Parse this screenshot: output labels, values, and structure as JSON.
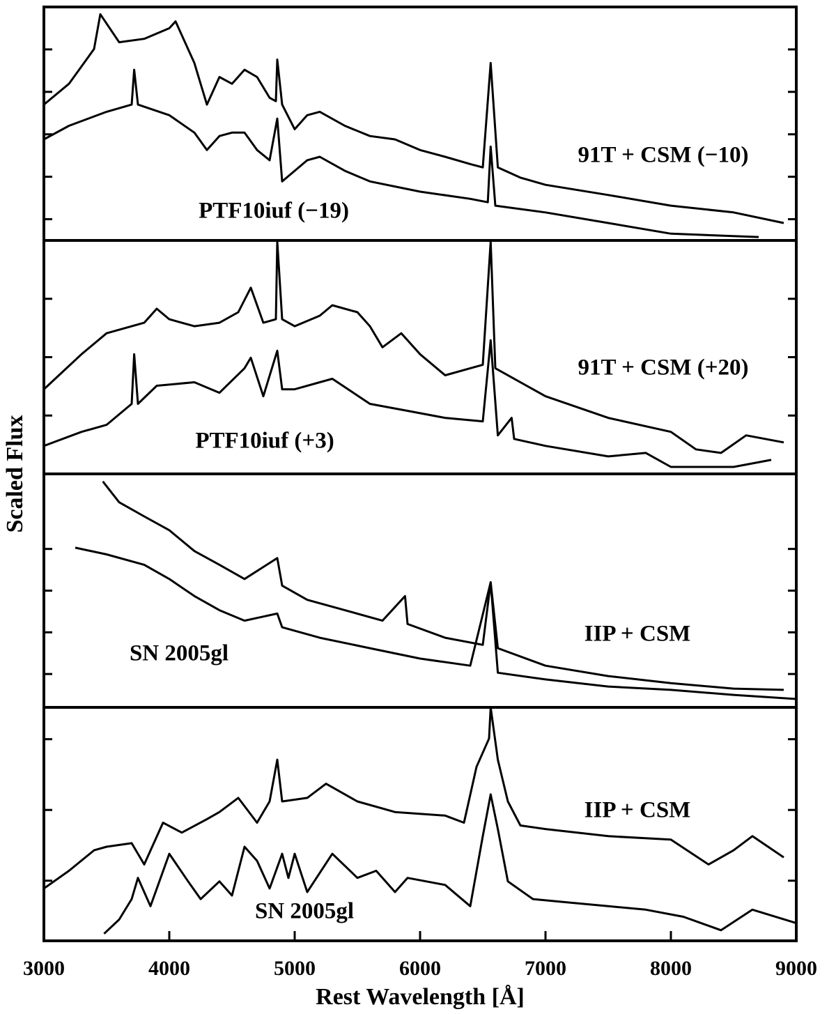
{
  "ylabel": "Scaled Flux",
  "chart_data": [
    {
      "type": "line",
      "xlim": [
        3000,
        9000
      ],
      "ylim": [
        0,
        5.5
      ],
      "yticks": [
        0.5,
        1.5,
        2.5,
        3.5,
        4.5
      ],
      "series": [
        {
          "name": "91T + CSM (−10)",
          "color": "#000000",
          "x": [
            3000,
            3200,
            3400,
            3450,
            3600,
            3800,
            4000,
            4050,
            4200,
            4300,
            4400,
            4500,
            4600,
            4700,
            4800,
            4850,
            4861,
            4900,
            5000,
            5100,
            5200,
            5400,
            5600,
            5800,
            6000,
            6200,
            6400,
            6500,
            6563,
            6620,
            6800,
            7000,
            7500,
            8000,
            8500,
            8900
          ],
          "values": [
            3.2,
            3.69,
            4.51,
            5.33,
            4.67,
            4.75,
            5.0,
            5.16,
            4.18,
            3.2,
            3.85,
            3.69,
            4.02,
            3.85,
            3.36,
            3.28,
            4.26,
            3.2,
            2.62,
            2.95,
            3.03,
            2.7,
            2.46,
            2.38,
            2.13,
            1.97,
            1.8,
            1.72,
            4.18,
            1.72,
            1.48,
            1.31,
            1.07,
            0.82,
            0.66,
            0.41
          ]
        },
        {
          "name": "PTF10iuf (−19)",
          "color": "#000000",
          "x": [
            3000,
            3200,
            3500,
            3700,
            3720,
            3750,
            4000,
            4200,
            4300,
            4400,
            4500,
            4600,
            4700,
            4800,
            4861,
            4900,
            5000,
            5100,
            5200,
            5400,
            5600,
            6000,
            6400,
            6540,
            6563,
            6600,
            7000,
            7500,
            8000,
            8700
          ],
          "values": [
            2.38,
            2.7,
            3.03,
            3.2,
            4.02,
            3.2,
            2.95,
            2.54,
            2.13,
            2.46,
            2.54,
            2.54,
            2.13,
            1.89,
            2.87,
            1.39,
            1.64,
            1.89,
            1.97,
            1.64,
            1.39,
            1.15,
            0.98,
            0.9,
            2.21,
            0.82,
            0.66,
            0.41,
            0.16,
            0.08
          ]
        }
      ]
    },
    {
      "type": "line",
      "xlim": [
        3000,
        9000
      ],
      "ylim": [
        0,
        4
      ],
      "yticks": [
        1,
        2,
        3
      ],
      "series": [
        {
          "name": "91T + CSM (+20)",
          "color": "#000000",
          "x": [
            3000,
            3300,
            3500,
            3800,
            3900,
            4000,
            4200,
            4400,
            4550,
            4650,
            4750,
            4850,
            4861,
            4900,
            5000,
            5200,
            5300,
            5500,
            5600,
            5700,
            5850,
            6000,
            6200,
            6400,
            6500,
            6563,
            6600,
            7000,
            7500,
            8000,
            8200,
            8400,
            8600,
            8900
          ],
          "values": [
            1.45,
            2.05,
            2.41,
            2.59,
            2.83,
            2.65,
            2.53,
            2.59,
            2.77,
            3.19,
            2.59,
            2.65,
            3.98,
            2.65,
            2.53,
            2.71,
            2.89,
            2.77,
            2.53,
            2.17,
            2.41,
            2.05,
            1.69,
            1.81,
            1.87,
            3.98,
            1.81,
            1.33,
            0.96,
            0.72,
            0.42,
            0.36,
            0.66,
            0.54
          ]
        },
        {
          "name": "PTF10iuf (+3)",
          "color": "#000000",
          "x": [
            3000,
            3300,
            3500,
            3700,
            3720,
            3750,
            3900,
            4200,
            4400,
            4600,
            4650,
            4750,
            4861,
            4900,
            5000,
            5200,
            5300,
            5600,
            5900,
            6200,
            6500,
            6563,
            6620,
            6730,
            6750,
            7000,
            7500,
            7800,
            8000,
            8500,
            8800
          ],
          "values": [
            0.48,
            0.72,
            0.84,
            1.2,
            2.05,
            1.2,
            1.51,
            1.57,
            1.39,
            1.81,
            1.99,
            1.33,
            2.11,
            1.45,
            1.45,
            1.57,
            1.63,
            1.2,
            1.08,
            0.96,
            0.9,
            2.29,
            0.66,
            0.96,
            0.6,
            0.48,
            0.3,
            0.36,
            0.12,
            0.12,
            0.24
          ]
        }
      ]
    },
    {
      "type": "line",
      "xlim": [
        3000,
        9000
      ],
      "ylim": [
        0,
        5.6
      ],
      "yticks": [
        0.8,
        1.8,
        2.8,
        3.8
      ],
      "series": [
        {
          "name": "IIP + CSM",
          "color": "#000000",
          "x": [
            3470,
            3600,
            3800,
            4000,
            4200,
            4400,
            4600,
            4861,
            4900,
            5100,
            5400,
            5700,
            5880,
            5900,
            6200,
            6500,
            6563,
            6620,
            7000,
            7500,
            8000,
            8500,
            8900
          ],
          "values": [
            5.42,
            4.92,
            4.58,
            4.25,
            3.75,
            3.42,
            3.08,
            3.58,
            2.92,
            2.58,
            2.33,
            2.08,
            2.67,
            2.0,
            1.67,
            1.5,
            3.0,
            1.42,
            1.0,
            0.75,
            0.58,
            0.45,
            0.42
          ]
        },
        {
          "name": "SN 2005gl",
          "color": "#000000",
          "x": [
            3250,
            3500,
            3800,
            4000,
            4200,
            4400,
            4600,
            4861,
            4900,
            5200,
            5600,
            6000,
            6400,
            6563,
            6620,
            7000,
            7500,
            8000,
            8500,
            9000
          ],
          "values": [
            3.83,
            3.67,
            3.42,
            3.08,
            2.67,
            2.33,
            2.08,
            2.25,
            1.92,
            1.67,
            1.42,
            1.17,
            1.0,
            3.0,
            0.83,
            0.67,
            0.5,
            0.42,
            0.3,
            0.2
          ]
        }
      ]
    },
    {
      "type": "line",
      "xlim": [
        3000,
        9000
      ],
      "ylim": [
        0,
        3.3
      ],
      "yticks": [
        0.85,
        1.85,
        2.85
      ],
      "xticks": [
        3000,
        4000,
        5000,
        6000,
        7000,
        8000,
        9000
      ],
      "xlabel": "Rest Wavelength [Å]",
      "series": [
        {
          "name": "IIP + CSM",
          "color": "#000000",
          "x": [
            3000,
            3200,
            3400,
            3500,
            3700,
            3800,
            3950,
            4100,
            4300,
            4400,
            4550,
            4700,
            4800,
            4861,
            4900,
            5100,
            5250,
            5500,
            5800,
            6200,
            6350,
            6450,
            6550,
            6563,
            6620,
            6700,
            6800,
            7000,
            7500,
            8000,
            8300,
            8500,
            8650,
            8900
          ],
          "values": [
            0.74,
            0.99,
            1.28,
            1.33,
            1.38,
            1.08,
            1.67,
            1.53,
            1.72,
            1.82,
            2.02,
            1.67,
            1.97,
            2.56,
            1.97,
            2.02,
            2.22,
            1.97,
            1.82,
            1.77,
            1.67,
            2.46,
            2.86,
            3.3,
            2.56,
            1.97,
            1.63,
            1.58,
            1.48,
            1.43,
            1.08,
            1.28,
            1.48,
            1.18
          ]
        },
        {
          "name": "SN 2005gl",
          "color": "#000000",
          "x": [
            3480,
            3600,
            3700,
            3750,
            3850,
            4000,
            4150,
            4250,
            4400,
            4500,
            4600,
            4700,
            4800,
            4900,
            4950,
            5000,
            5100,
            5300,
            5500,
            5650,
            5800,
            5900,
            6200,
            6400,
            6500,
            6563,
            6620,
            6700,
            6900,
            7200,
            7500,
            7800,
            8100,
            8400,
            8650,
            9000
          ],
          "values": [
            0.1,
            0.3,
            0.59,
            0.89,
            0.49,
            1.23,
            0.84,
            0.59,
            0.84,
            0.64,
            1.33,
            1.13,
            0.74,
            1.23,
            0.89,
            1.23,
            0.69,
            1.23,
            0.89,
            0.99,
            0.69,
            0.89,
            0.79,
            0.49,
            1.48,
            2.07,
            1.58,
            0.84,
            0.59,
            0.54,
            0.49,
            0.44,
            0.34,
            0.15,
            0.44,
            0.25
          ]
        }
      ]
    }
  ]
}
